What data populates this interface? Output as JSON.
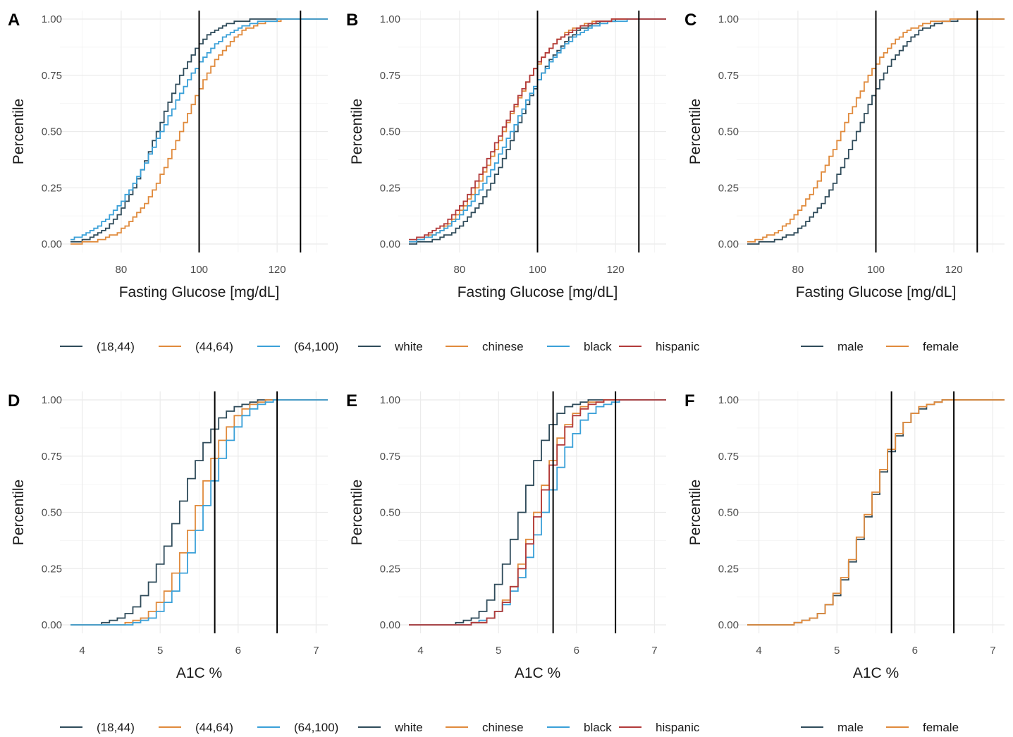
{
  "colors": {
    "(18,44)": "#2f4b5a",
    "(44,64)": "#e08a3c",
    "(64,100)": "#3aa0d8",
    "white": "#2f4b5a",
    "chinese": "#e08a3c",
    "black": "#3aa0d8",
    "hispanic": "#b23a3a",
    "male": "#2f4b5a",
    "female": "#e08a3c"
  },
  "legends": {
    "age": [
      "(18,44)",
      "(44,64)",
      "(64,100)"
    ],
    "race": [
      "white",
      "chinese",
      "black",
      "hispanic"
    ],
    "sex": [
      "male",
      "female"
    ]
  },
  "chart_data": [
    {
      "panel": "A",
      "type": "line",
      "step": true,
      "xlabel": "Fasting Glucose [mg/dL]",
      "ylabel": "Percentile",
      "xlim": [
        67,
        133
      ],
      "ylim": [
        0,
        1
      ],
      "xticks": [
        80,
        100,
        120
      ],
      "yticks": [
        0.0,
        0.25,
        0.5,
        0.75,
        1.0
      ],
      "ytick_labels": [
        "0.00",
        "0.25",
        "0.50",
        "0.75",
        "1.00"
      ],
      "vlines": [
        100,
        126
      ],
      "legend": "age",
      "series": [
        {
          "name": "(18,44)",
          "mean": 89,
          "sd": 9
        },
        {
          "name": "(44,64)",
          "mean": 95,
          "sd": 10
        },
        {
          "name": "(64,100)",
          "mean": 90,
          "sd": 11.5
        }
      ]
    },
    {
      "panel": "B",
      "type": "line",
      "step": true,
      "xlabel": "Fasting Glucose [mg/dL]",
      "ylabel": "Percentile",
      "xlim": [
        67,
        133
      ],
      "ylim": [
        0,
        1
      ],
      "xticks": [
        80,
        100,
        120
      ],
      "yticks": [
        0.0,
        0.25,
        0.5,
        0.75,
        1.0
      ],
      "ytick_labels": [
        "0.00",
        "0.25",
        "0.50",
        "0.75",
        "1.00"
      ],
      "vlines": [
        100,
        126
      ],
      "legend": "race",
      "series": [
        {
          "name": "white",
          "mean": 94,
          "sd": 10
        },
        {
          "name": "chinese",
          "mean": 91,
          "sd": 10.5
        },
        {
          "name": "black",
          "mean": 93,
          "sd": 11.5
        },
        {
          "name": "hispanic",
          "mean": 90.5,
          "sd": 11
        }
      ]
    },
    {
      "panel": "C",
      "type": "line",
      "step": true,
      "xlabel": "Fasting Glucose [mg/dL]",
      "ylabel": "Percentile",
      "xlim": [
        67,
        133
      ],
      "ylim": [
        0,
        1
      ],
      "xticks": [
        80,
        100,
        120
      ],
      "yticks": [
        0.0,
        0.25,
        0.5,
        0.75,
        1.0
      ],
      "ytick_labels": [
        "0.00",
        "0.25",
        "0.50",
        "0.75",
        "1.00"
      ],
      "vlines": [
        100,
        126
      ],
      "legend": "sex",
      "series": [
        {
          "name": "male",
          "mean": 95,
          "sd": 10
        },
        {
          "name": "female",
          "mean": 91,
          "sd": 10.5
        }
      ]
    },
    {
      "panel": "D",
      "type": "line",
      "step": true,
      "xlabel": "A1C %",
      "ylabel": "Percentile",
      "xlim": [
        3.85,
        7.15
      ],
      "ylim": [
        0,
        1
      ],
      "xticks": [
        4,
        5,
        6,
        7
      ],
      "yticks": [
        0.0,
        0.25,
        0.5,
        0.75,
        1.0
      ],
      "ytick_labels": [
        "0.00",
        "0.25",
        "0.50",
        "0.75",
        "1.00"
      ],
      "vlines": [
        5.7,
        6.5
      ],
      "legend": "age",
      "series": [
        {
          "name": "(18,44)",
          "mean": 5.2,
          "sd": 0.4
        },
        {
          "name": "(44,64)",
          "mean": 5.42,
          "sd": 0.36
        },
        {
          "name": "(64,100)",
          "mean": 5.52,
          "sd": 0.36
        }
      ]
    },
    {
      "panel": "E",
      "type": "line",
      "step": true,
      "xlabel": "A1C %",
      "ylabel": "Percentile",
      "xlim": [
        3.85,
        7.15
      ],
      "ylim": [
        0,
        1
      ],
      "xticks": [
        4,
        5,
        6,
        7
      ],
      "yticks": [
        0.0,
        0.25,
        0.5,
        0.75,
        1.0
      ],
      "ytick_labels": [
        "0.00",
        "0.25",
        "0.50",
        "0.75",
        "1.00"
      ],
      "vlines": [
        5.7,
        6.5
      ],
      "legend": "race",
      "series": [
        {
          "name": "white",
          "mean": 5.25,
          "sd": 0.33
        },
        {
          "name": "chinese",
          "mean": 5.45,
          "sd": 0.32
        },
        {
          "name": "black",
          "mean": 5.55,
          "sd": 0.38
        },
        {
          "name": "hispanic",
          "mean": 5.47,
          "sd": 0.33
        }
      ]
    },
    {
      "panel": "F",
      "type": "line",
      "step": true,
      "xlabel": "A1C %",
      "ylabel": "Percentile",
      "xlim": [
        3.85,
        7.15
      ],
      "ylim": [
        0,
        1
      ],
      "xticks": [
        4,
        5,
        6,
        7
      ],
      "yticks": [
        0.0,
        0.25,
        0.5,
        0.75,
        1.0
      ],
      "ytick_labels": [
        "0.00",
        "0.25",
        "0.50",
        "0.75",
        "1.00"
      ],
      "vlines": [
        5.7,
        6.5
      ],
      "legend": "sex",
      "series": [
        {
          "name": "male",
          "mean": 5.37,
          "sd": 0.38
        },
        {
          "name": "female",
          "mean": 5.36,
          "sd": 0.38
        }
      ]
    }
  ]
}
